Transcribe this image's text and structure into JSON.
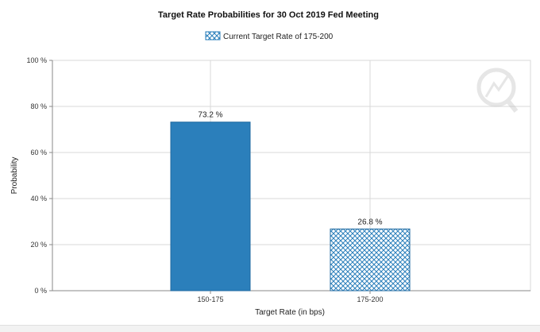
{
  "chart_data": {
    "type": "bar",
    "title": "Target Rate Probabilities for 30 Oct 2019 Fed Meeting",
    "xlabel": "Target Rate (in bps)",
    "ylabel": "Probability",
    "categories": [
      "150-175",
      "175-200"
    ],
    "values": [
      73.2,
      26.8
    ],
    "value_labels": [
      "73.2 %",
      "26.8 %"
    ],
    "ylim": [
      0,
      100
    ],
    "yticks": [
      0,
      20,
      40,
      60,
      80,
      100
    ],
    "ytick_labels": [
      "0 %",
      "20 %",
      "40 %",
      "60 %",
      "80 %",
      "100 %"
    ],
    "legend": {
      "label": "Current Target Rate of 175-200",
      "position": "top-center"
    },
    "bar_styles": [
      "solid",
      "crosshatch"
    ],
    "grid": true,
    "colors": {
      "bar": "#2b7fbb",
      "bar_edge": "#1f6aa0",
      "grid": "#d9d9d9",
      "axis": "#888888"
    }
  }
}
